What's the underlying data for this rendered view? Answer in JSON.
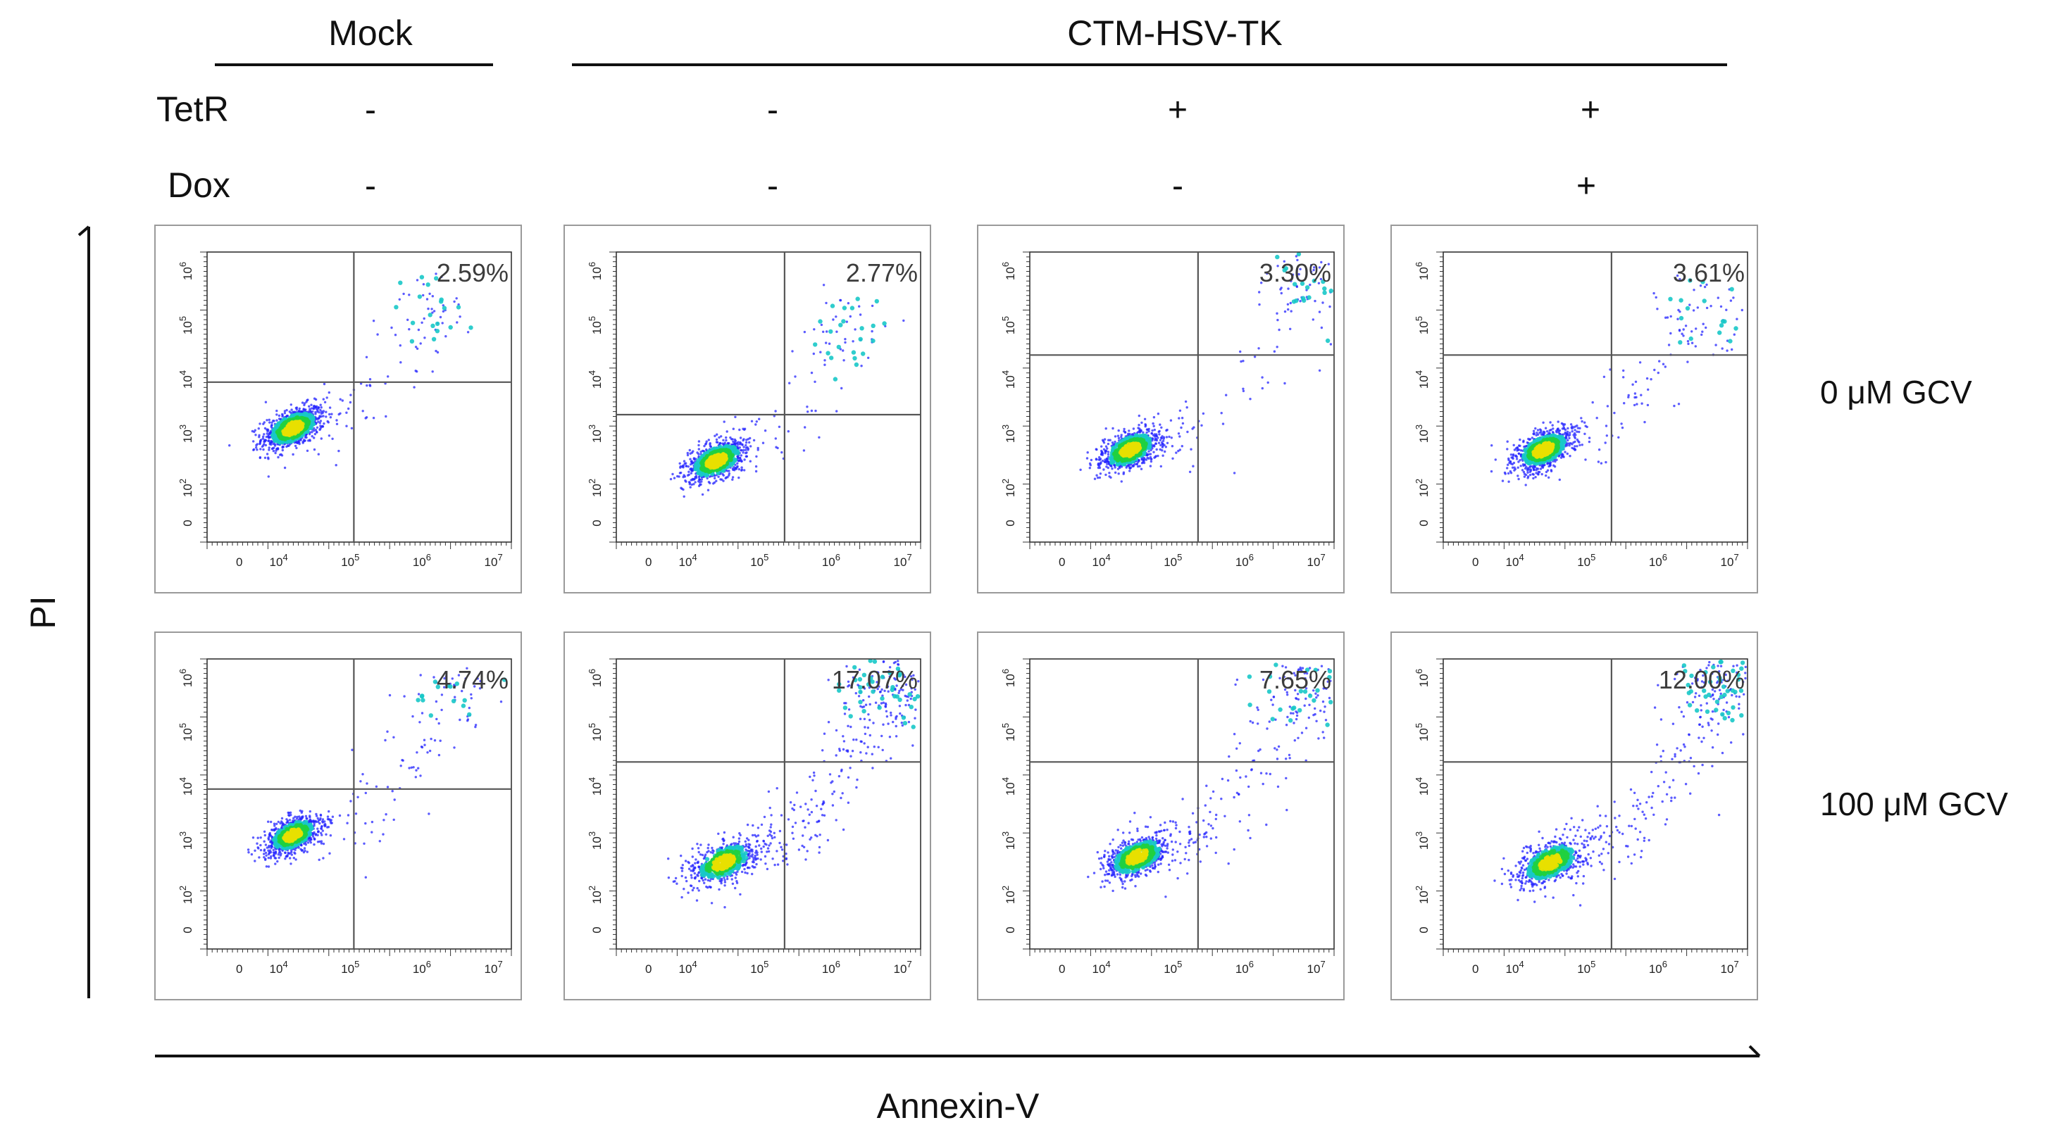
{
  "colors": {
    "text": "#111111",
    "panel_border": "#9a9a9a",
    "gate_line": "#555555",
    "density_low": "#2424ff",
    "density_mid": "#18c8c8",
    "density_high": "#20d040",
    "density_peak": "#e8e000"
  },
  "header": {
    "mock_label": "Mock",
    "treated_label": "CTM-HSV-TK",
    "rows": [
      {
        "label": "TetR",
        "values": [
          "-",
          "-",
          "+",
          "+"
        ]
      },
      {
        "label": "Dox",
        "values": [
          "-",
          "-",
          "-",
          "+"
        ]
      }
    ]
  },
  "row_labels": [
    "0 μM GCV",
    "100 μM GCV"
  ],
  "axes": {
    "x_label": "Annexin-V",
    "y_label": "PI"
  },
  "chart_data": {
    "type": "scatter",
    "subtype": "flow-cytometry density dot plot (quadrant gated)",
    "x_label": "Annexin-V",
    "y_label": "PI",
    "x_tick_labels": [
      "0",
      "10^4",
      "10^5",
      "10^6",
      "10^7"
    ],
    "y_tick_labels": [
      "0",
      "10^2",
      "10^3",
      "10^4",
      "10^5",
      "10^6"
    ],
    "columns": [
      {
        "group": "Mock",
        "TetR": "-",
        "Dox": "-"
      },
      {
        "group": "CTM-HSV-TK",
        "TetR": "-",
        "Dox": "-"
      },
      {
        "group": "CTM-HSV-TK",
        "TetR": "+",
        "Dox": "-"
      },
      {
        "group": "CTM-HSV-TK",
        "TetR": "+",
        "Dox": "+"
      }
    ],
    "rows": [
      "0 μM GCV",
      "100 μM GCV"
    ],
    "panels": [
      {
        "row": 0,
        "col": 0,
        "upper_right_percent": "2.59%",
        "gate_x_log": 5.05,
        "gate_y_log": 3.95,
        "population": {
          "x_log": 4.2,
          "y_log": 3.1,
          "spread": 0.22
        },
        "apoptotic_fraction": 0.12,
        "late_center": {
          "x_log": 6.2,
          "y_log": 5.3
        }
      },
      {
        "row": 0,
        "col": 1,
        "upper_right_percent": "2.77%",
        "gate_x_log": 5.35,
        "gate_y_log": 3.35,
        "population": {
          "x_log": 4.4,
          "y_log": 2.5,
          "spread": 0.22
        },
        "apoptotic_fraction": 0.12,
        "late_center": {
          "x_log": 6.3,
          "y_log": 4.9
        }
      },
      {
        "row": 0,
        "col": 2,
        "upper_right_percent": "3.30%",
        "gate_x_log": 5.35,
        "gate_y_log": 4.45,
        "population": {
          "x_log": 4.4,
          "y_log": 2.7,
          "spread": 0.22
        },
        "apoptotic_fraction": 0.15,
        "late_center": {
          "x_log": 6.9,
          "y_log": 5.8
        }
      },
      {
        "row": 0,
        "col": 3,
        "upper_right_percent": "3.61%",
        "gate_x_log": 5.35,
        "gate_y_log": 4.45,
        "population": {
          "x_log": 4.4,
          "y_log": 2.7,
          "spread": 0.22
        },
        "apoptotic_fraction": 0.15,
        "late_center": {
          "x_log": 6.6,
          "y_log": 5.2
        }
      },
      {
        "row": 1,
        "col": 0,
        "upper_right_percent": "4.74%",
        "gate_x_log": 5.05,
        "gate_y_log": 3.95,
        "population": {
          "x_log": 4.2,
          "y_log": 3.1,
          "spread": 0.2
        },
        "apoptotic_fraction": 0.14,
        "late_center": {
          "x_log": 6.4,
          "y_log": 5.6
        }
      },
      {
        "row": 1,
        "col": 1,
        "upper_right_percent": "17.07%",
        "gate_x_log": 5.35,
        "gate_y_log": 4.45,
        "population": {
          "x_log": 4.5,
          "y_log": 2.6,
          "spread": 0.24
        },
        "apoptotic_fraction": 0.42,
        "late_center": {
          "x_log": 6.8,
          "y_log": 5.8
        }
      },
      {
        "row": 1,
        "col": 2,
        "upper_right_percent": "7.65%",
        "gate_x_log": 5.35,
        "gate_y_log": 4.45,
        "population": {
          "x_log": 4.5,
          "y_log": 2.7,
          "spread": 0.23
        },
        "apoptotic_fraction": 0.28,
        "late_center": {
          "x_log": 6.8,
          "y_log": 5.8
        }
      },
      {
        "row": 1,
        "col": 3,
        "upper_right_percent": "12.00%",
        "gate_x_log": 5.35,
        "gate_y_log": 4.45,
        "population": {
          "x_log": 4.5,
          "y_log": 2.6,
          "spread": 0.24
        },
        "apoptotic_fraction": 0.35,
        "late_center": {
          "x_log": 6.9,
          "y_log": 5.8
        }
      }
    ]
  }
}
